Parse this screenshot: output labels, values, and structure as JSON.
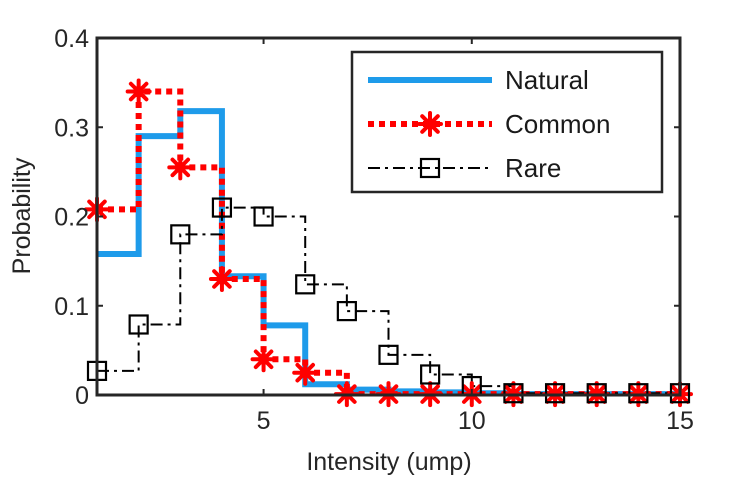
{
  "chart_data": {
    "type": "line",
    "step": true,
    "title": "",
    "xlabel": "Intensity (ump)",
    "ylabel": "Probability",
    "xlim": [
      1,
      15
    ],
    "ylim": [
      0,
      0.4
    ],
    "xticks": [
      5,
      10,
      15
    ],
    "yticks": [
      0,
      0.1,
      0.2,
      0.3,
      0.4
    ],
    "xtick_labels": [
      "5",
      "10",
      "15"
    ],
    "ytick_labels": [
      "0",
      "0.1",
      "0.2",
      "0.3",
      "0.4"
    ],
    "grid": false,
    "legend": "top-right",
    "series": [
      {
        "name": "Natural",
        "color": "#1e9bea",
        "line": "solid",
        "marker": "none",
        "x": [
          1,
          2,
          3,
          4,
          5,
          6,
          7,
          8,
          9,
          10,
          11,
          12,
          13,
          14,
          15
        ],
        "y": [
          0.158,
          0.29,
          0.318,
          0.133,
          0.078,
          0.012,
          0.006,
          0.004,
          0.003,
          0.002,
          0.001,
          0.001,
          0.001,
          0.001,
          0.001
        ]
      },
      {
        "name": "Common",
        "color": "#ff0000",
        "line": "dotted",
        "marker": "asterisk",
        "x": [
          1,
          2,
          3,
          4,
          5,
          6,
          7,
          8,
          9,
          10,
          11,
          12,
          13,
          14,
          15
        ],
        "y": [
          0.208,
          0.34,
          0.255,
          0.13,
          0.04,
          0.025,
          0.001,
          0.001,
          0.001,
          0.001,
          0.001,
          0.001,
          0.001,
          0.001,
          0.001
        ]
      },
      {
        "name": "Rare",
        "color": "#000000",
        "line": "dashdot",
        "marker": "square",
        "x": [
          1,
          2,
          3,
          4,
          5,
          6,
          7,
          8,
          9,
          10,
          11,
          12,
          13,
          14,
          15
        ],
        "y": [
          0.027,
          0.079,
          0.18,
          0.21,
          0.2,
          0.124,
          0.094,
          0.045,
          0.023,
          0.01,
          0.002,
          0.002,
          0.002,
          0.002,
          0.002
        ]
      }
    ]
  }
}
